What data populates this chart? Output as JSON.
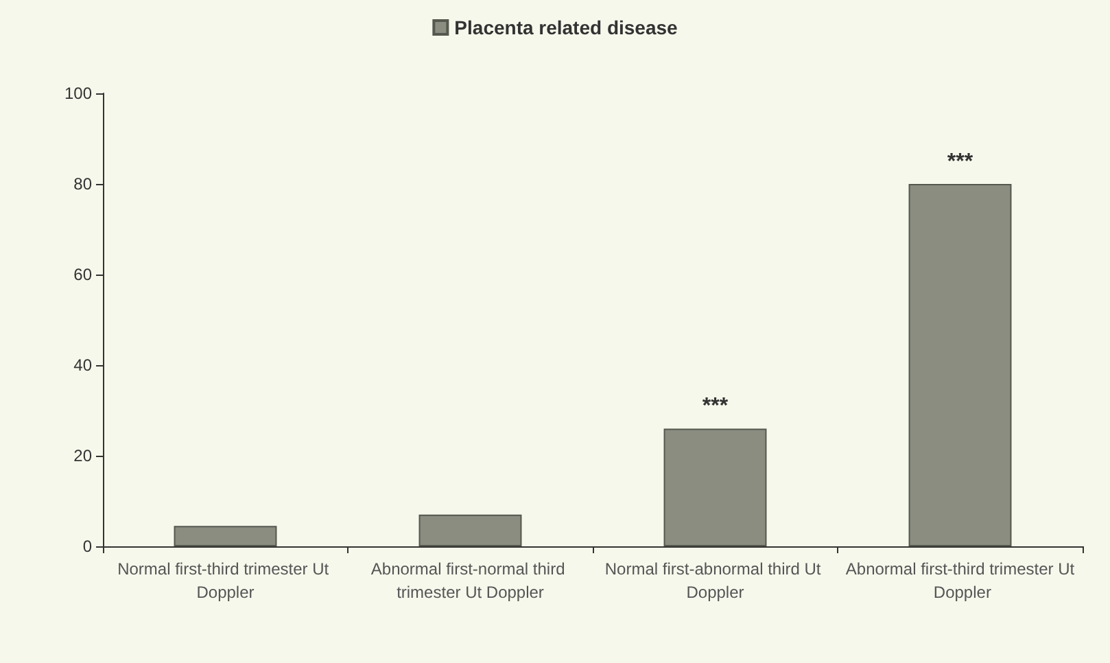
{
  "chart_data": {
    "type": "bar",
    "categories": [
      "Normal first-third trimester Ut Doppler",
      "Abnormal first-normal third trimester Ut Doppler",
      "Normal first-abnormal third Ut Doppler",
      "Abnormal first-third trimester Ut Doppler"
    ],
    "series": [
      {
        "name": "Placenta related disease",
        "color": "#8a8d80",
        "values": [
          4.5,
          7,
          26,
          80
        ]
      }
    ],
    "ylim": [
      0,
      100
    ],
    "yticks": [
      0,
      20,
      40,
      60,
      80,
      100
    ],
    "grid": false,
    "legend": "top",
    "annotations": [
      {
        "text": "***",
        "x": "Normal first-abnormal third Ut Doppler",
        "y": 26
      },
      {
        "text": "***",
        "x": "Abnormal first-third trimester Ut Doppler",
        "y": 80
      }
    ]
  }
}
